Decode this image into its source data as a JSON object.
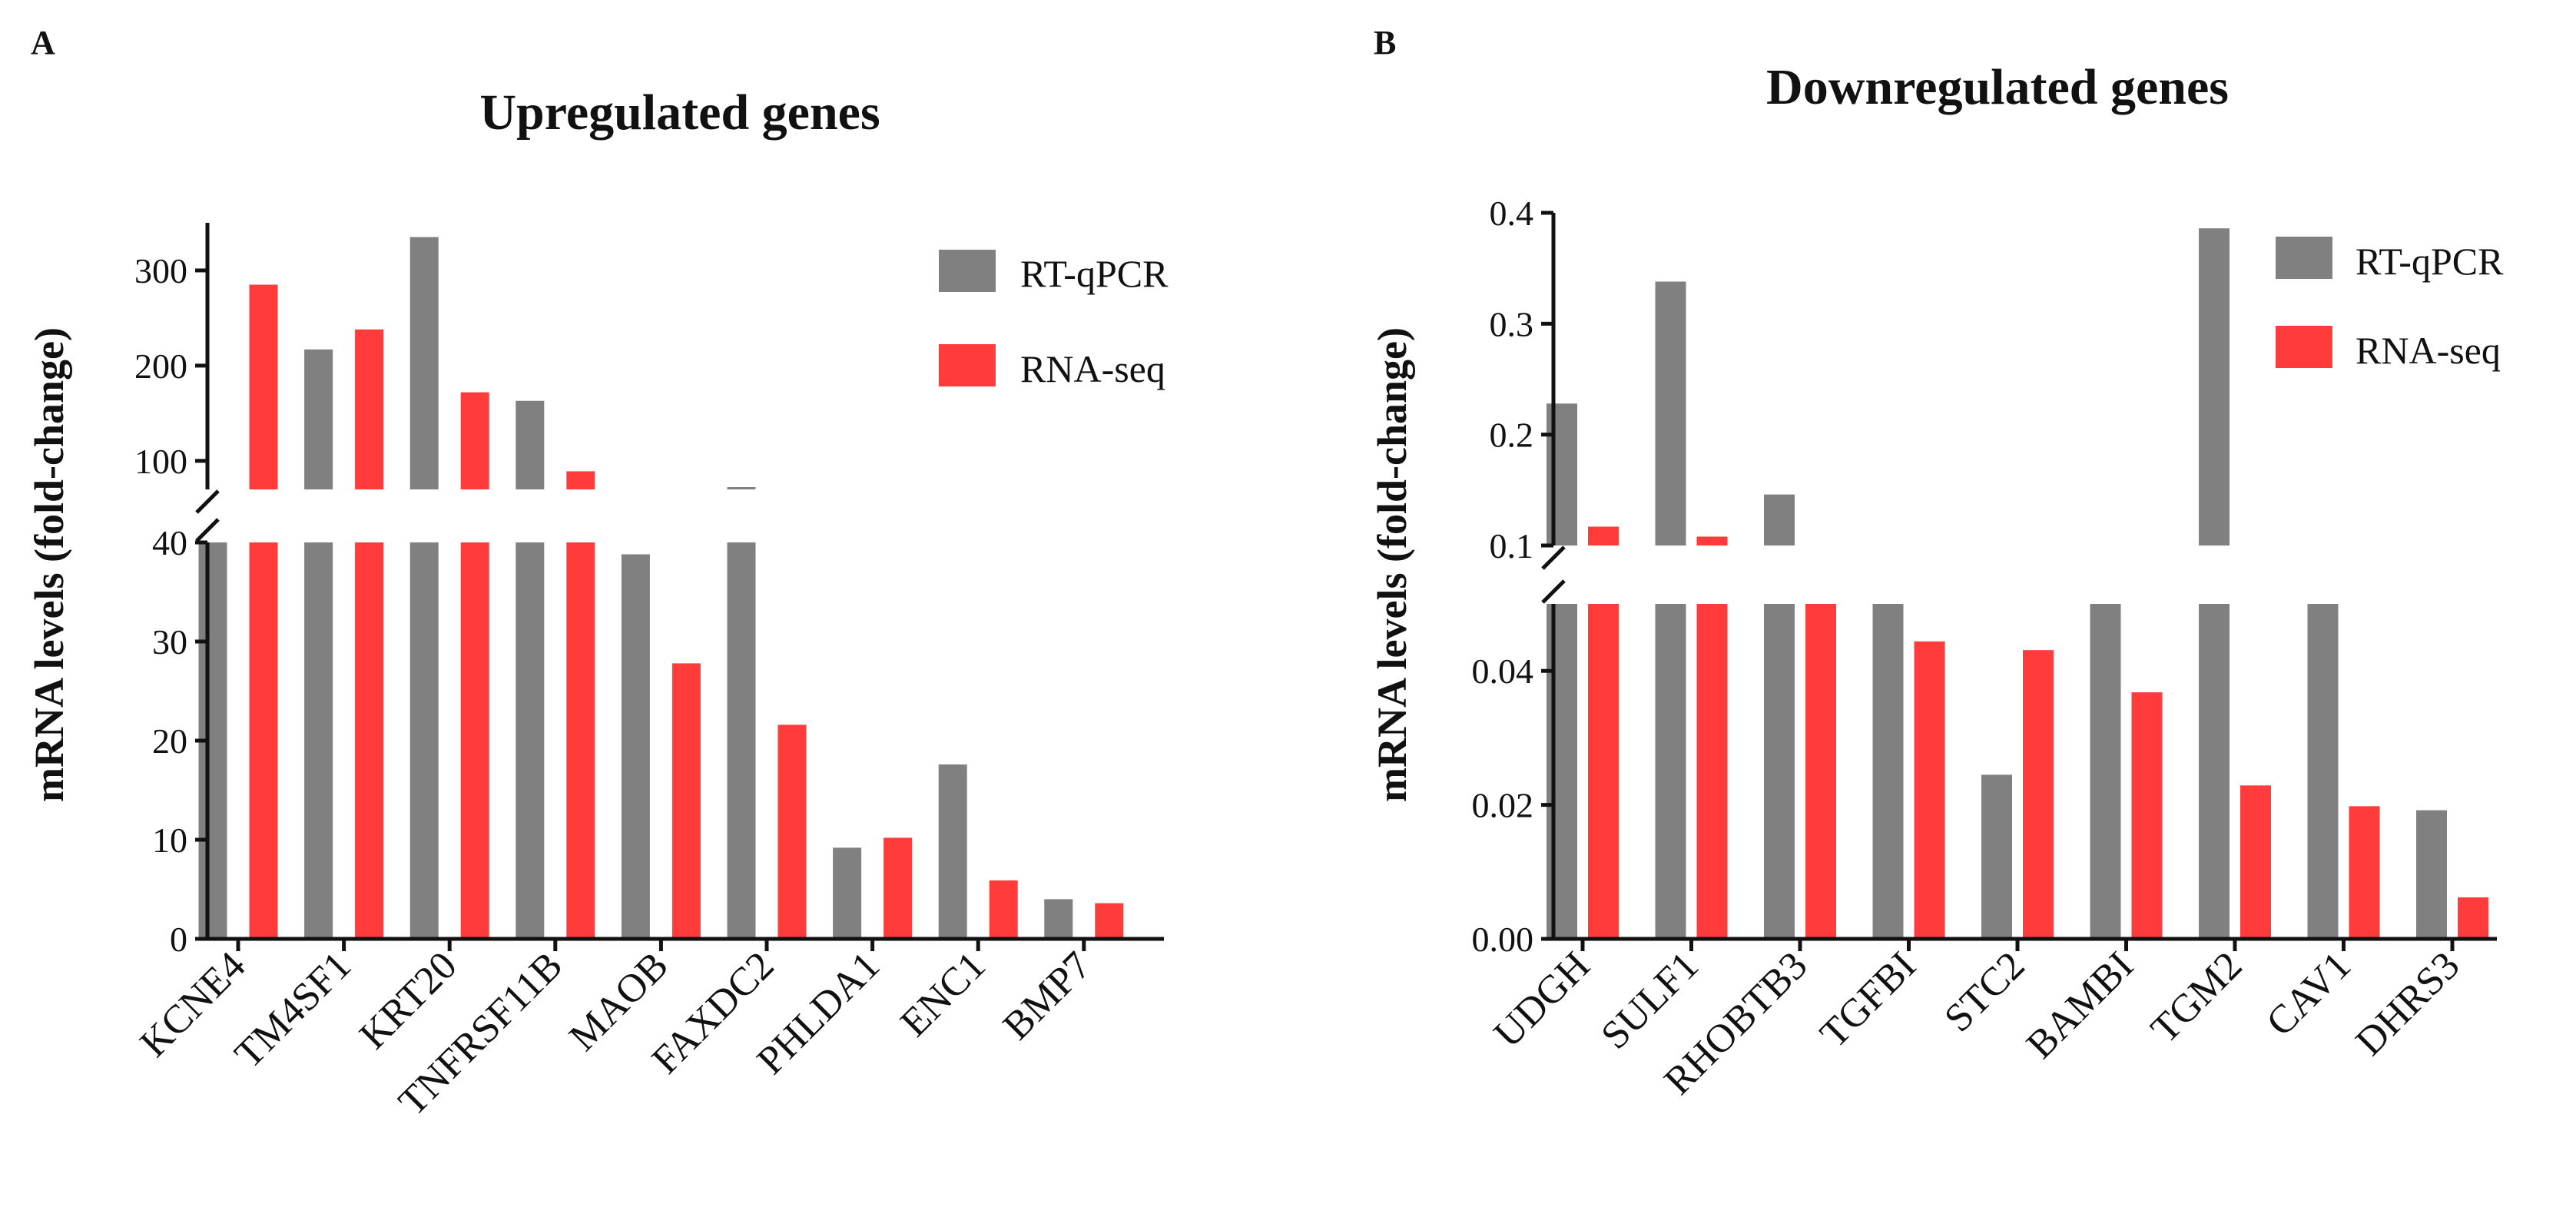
{
  "chart_data": [
    {
      "panel": "A",
      "type": "bar",
      "title": "Upregulated genes",
      "xlabel": "",
      "ylabel": "mRNA levels (fold-change)",
      "axis_break": true,
      "ylim_lower": [
        0,
        40
      ],
      "ylim_upper": [
        70,
        350
      ],
      "yticks_lower": [
        "0",
        "10",
        "20",
        "30",
        "40"
      ],
      "yticks_upper": [
        "100",
        "200",
        "300"
      ],
      "categories": [
        "KCNE4",
        "TM4SF1",
        "KRT20",
        "TNFRSF11B",
        "MAOB",
        "FAXDC2",
        "PHLDA1",
        "ENC1",
        "BMP7"
      ],
      "series": [
        {
          "name": "RT-qPCR",
          "color": "#808080",
          "values": [
            40,
            217,
            335,
            163,
            38.8,
            72,
            9.2,
            17.6,
            4.0
          ]
        },
        {
          "name": "RNA-seq",
          "color": "#ff3b3b",
          "values": [
            285,
            238,
            172,
            89,
            27.8,
            21.6,
            10.2,
            5.9,
            3.6
          ]
        }
      ],
      "legend": "top-right"
    },
    {
      "panel": "B",
      "type": "bar",
      "title": "Downregulated genes",
      "xlabel": "",
      "ylabel": "mRNA levels (fold-change)",
      "axis_break": true,
      "ylim_lower": [
        0,
        0.05
      ],
      "ylim_upper": [
        0.1,
        0.4
      ],
      "yticks_lower": [
        "0.00",
        "0.02",
        "0.04"
      ],
      "yticks_upper": [
        "0.1",
        "0.2",
        "0.3",
        "0.4"
      ],
      "categories": [
        "UDGH",
        "SULF1",
        "RHOBTB3",
        "TGFBI",
        "STC2",
        "BAMBI",
        "TGM2",
        "CAV1",
        "DHRS3"
      ],
      "series": [
        {
          "name": "RT-qPCR",
          "color": "#808080",
          "values": [
            0.228,
            0.338,
            0.146,
            0.05,
            0.0245,
            0.05,
            0.386,
            0.05,
            0.0192
          ]
        },
        {
          "name": "RNA-seq",
          "color": "#ff3b3b",
          "values": [
            0.117,
            0.108,
            0.05,
            0.0444,
            0.0431,
            0.0368,
            0.0229,
            0.0198,
            0.0062
          ]
        }
      ],
      "legend": "top-right"
    }
  ]
}
